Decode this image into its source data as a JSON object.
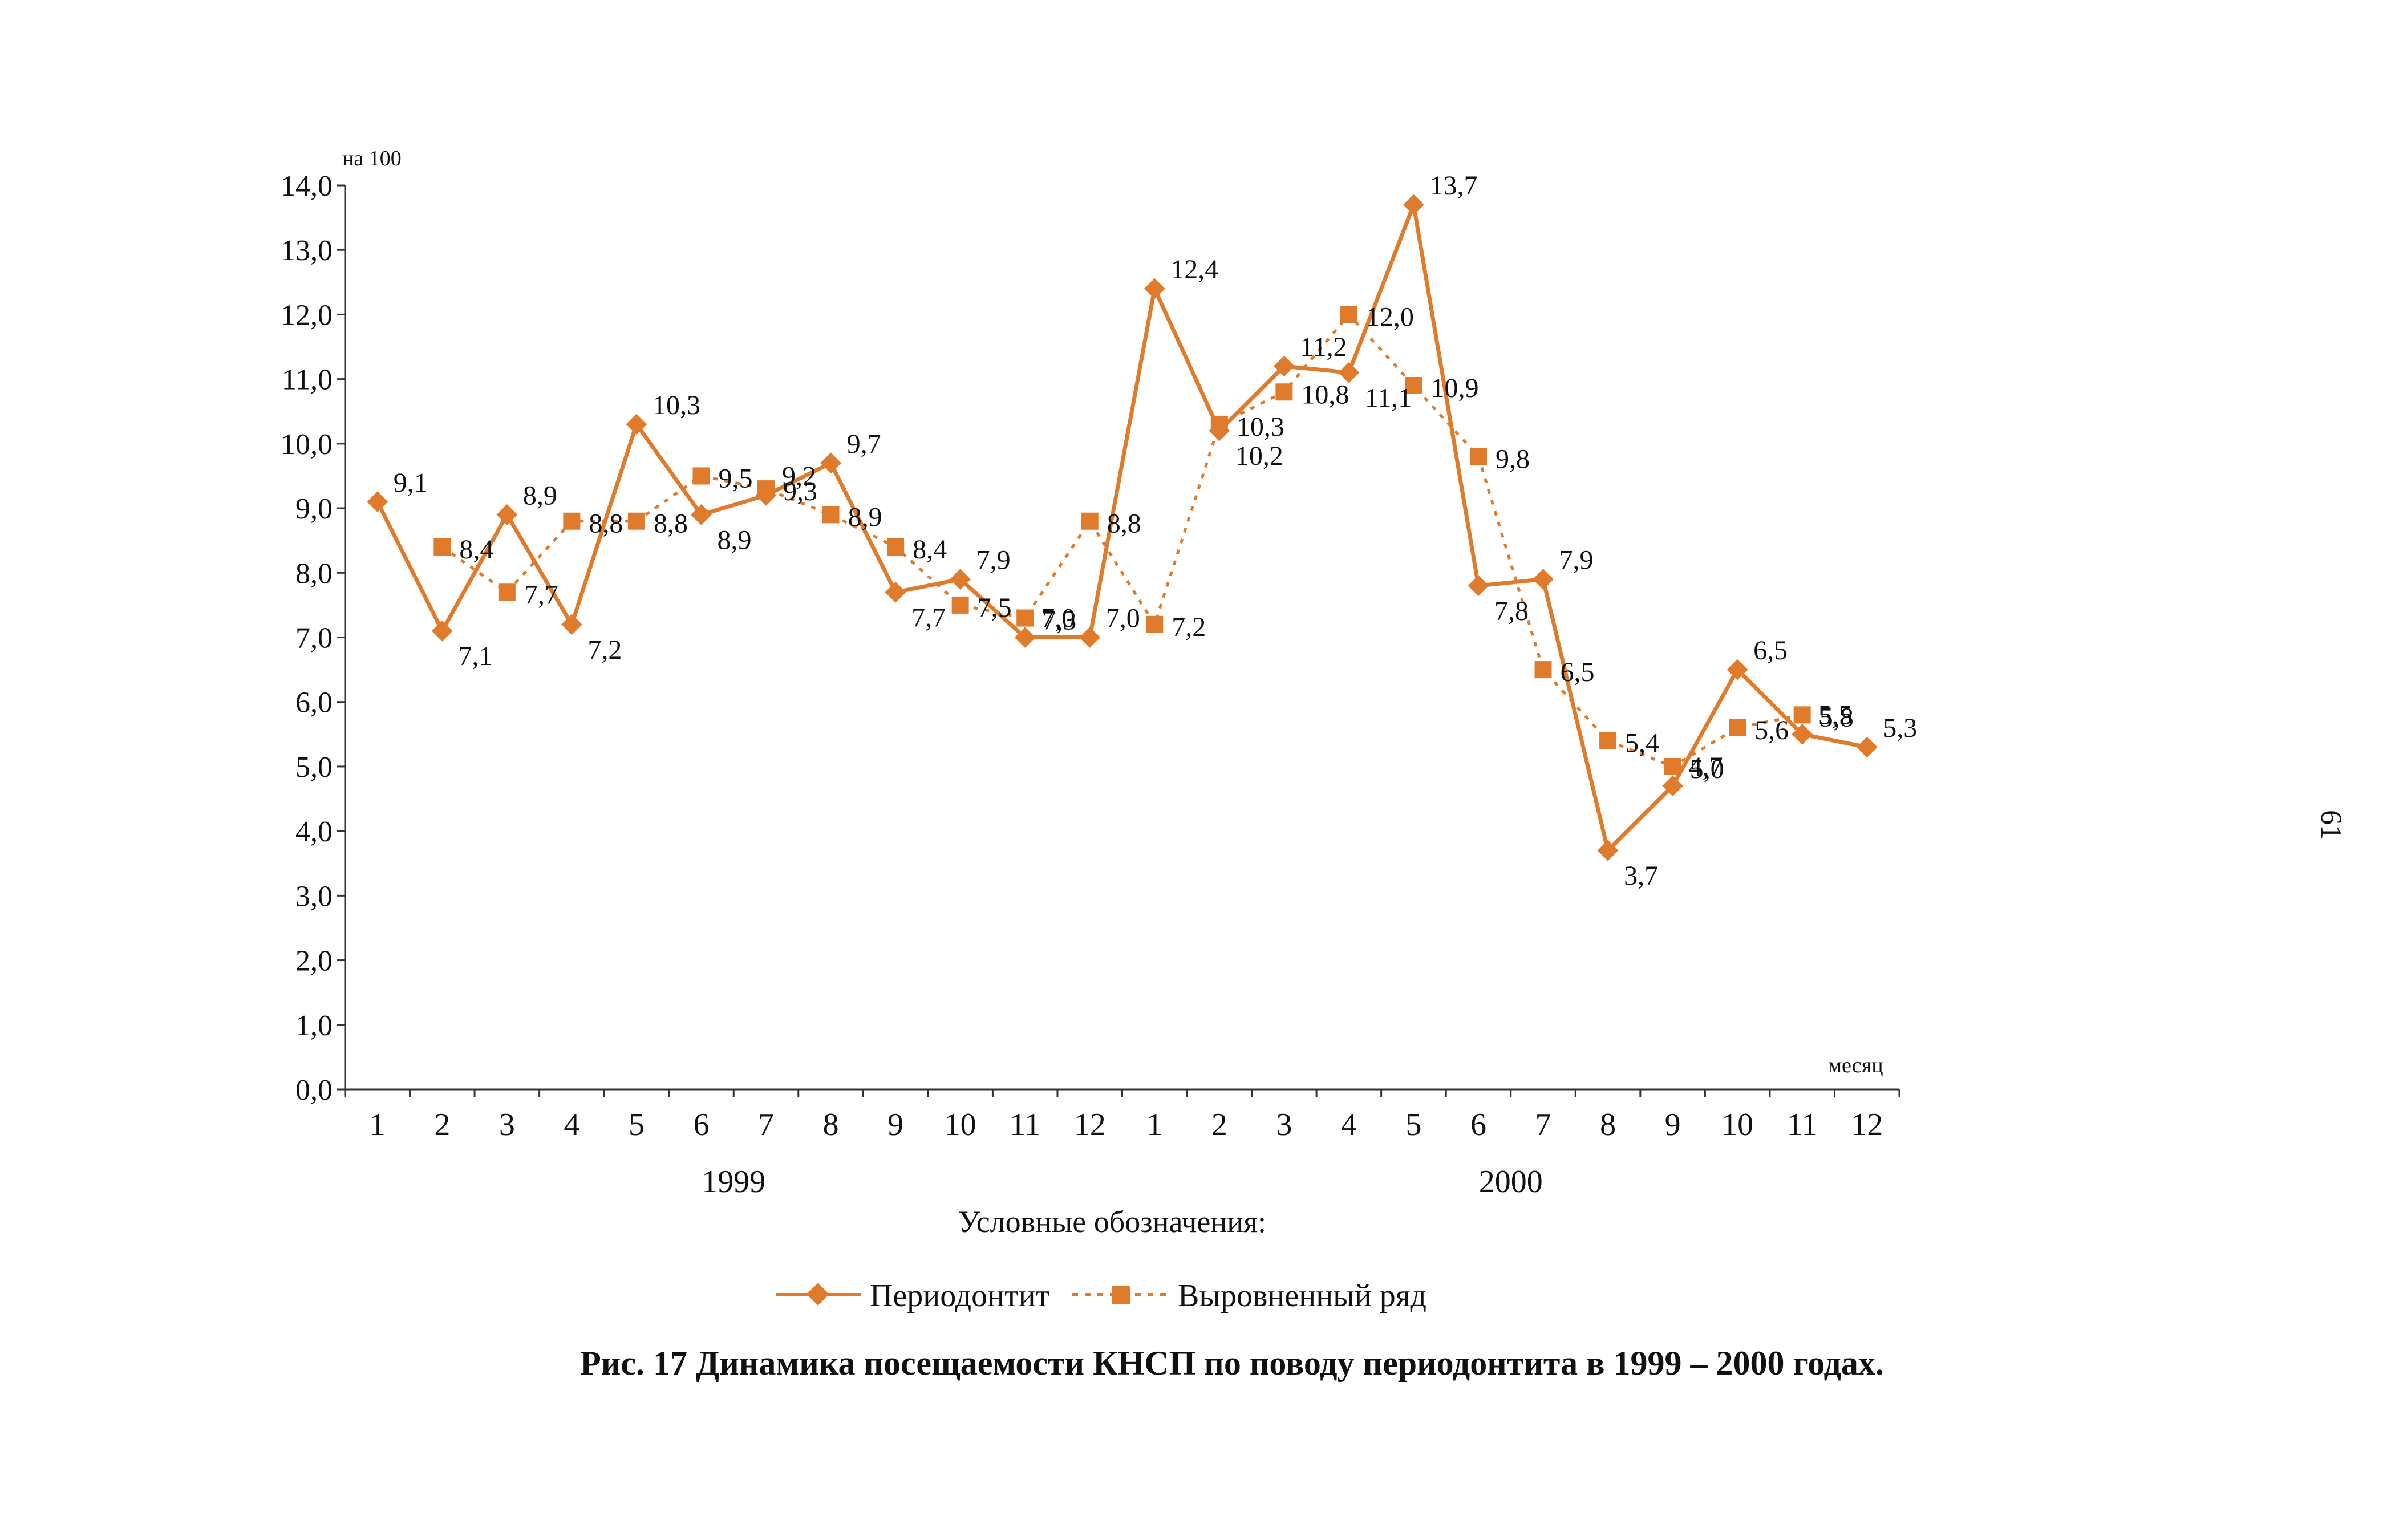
{
  "page_number": "61",
  "caption": "Рис. 17  Динамика посещаемости КНСП по поводу периодонтита в 1999 – 2000 годах.",
  "legend": {
    "title": "Условные обозначения:",
    "items": [
      "Периодонтит",
      "Выровненный ряд"
    ]
  },
  "colors": {
    "series": "#E07B2C",
    "text": "#111111"
  },
  "chart_data": {
    "type": "line",
    "y_unit_label": "на 100",
    "x_unit_label": "месяц",
    "ylim": [
      0,
      14
    ],
    "y_ticks": [
      "0,0",
      "1,0",
      "2,0",
      "3,0",
      "4,0",
      "5,0",
      "6,0",
      "7,0",
      "8,0",
      "9,0",
      "10,0",
      "11,0",
      "12,0",
      "13,0",
      "14,0"
    ],
    "categories": [
      "1",
      "2",
      "3",
      "4",
      "5",
      "6",
      "7",
      "8",
      "9",
      "10",
      "11",
      "12",
      "1",
      "2",
      "3",
      "4",
      "5",
      "6",
      "7",
      "8",
      "9",
      "10",
      "11",
      "12"
    ],
    "years": [
      {
        "label": "1999",
        "span": [
          0,
          11
        ]
      },
      {
        "label": "2000",
        "span": [
          12,
          23
        ]
      }
    ],
    "grid": false,
    "legend_position": "bottom",
    "series": [
      {
        "name": "Периодонтит",
        "style": "solid-diamond",
        "values": [
          9.1,
          7.1,
          8.9,
          7.2,
          10.3,
          8.9,
          9.2,
          9.7,
          7.7,
          7.9,
          7.0,
          7.0,
          12.4,
          10.2,
          11.2,
          11.1,
          13.7,
          7.8,
          7.9,
          3.7,
          4.7,
          6.5,
          5.5,
          5.3
        ],
        "labels": [
          "9,1",
          "7,1",
          "8,9",
          "7,2",
          "10,3",
          "8,9",
          "9,2",
          "9,7",
          "7,7",
          "7,9",
          "7,0",
          "7,0",
          "12,4",
          "10,2",
          "11,2",
          "11,1",
          "13,7",
          "7,8",
          "7,9",
          "3,7",
          "4,7",
          "6,5",
          "5,5",
          "5,3"
        ]
      },
      {
        "name": "Выровненный ряд",
        "style": "dotted-square",
        "values": [
          null,
          8.4,
          7.7,
          8.8,
          8.8,
          9.5,
          9.3,
          8.9,
          8.4,
          7.5,
          7.3,
          8.8,
          7.2,
          10.3,
          10.8,
          12.0,
          10.9,
          9.8,
          6.5,
          5.4,
          5.0,
          5.6,
          5.8,
          null
        ],
        "labels": [
          null,
          "8,4",
          "7,7",
          "8,8",
          "8,8",
          "9,5",
          "9,3",
          "8,9",
          "8,4",
          "7,5",
          "7,3",
          "8,8",
          "7,2",
          "10,3",
          "10,8",
          "12,0",
          "10,9",
          "9,8",
          "6,5",
          "5,4",
          "5,0",
          "5,6",
          "5,8",
          null
        ]
      }
    ]
  }
}
